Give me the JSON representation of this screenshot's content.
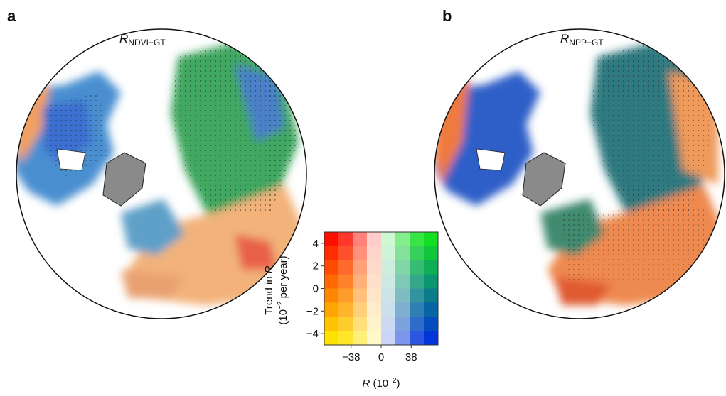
{
  "panels": [
    {
      "letter": "a",
      "title": "R",
      "subscript": "NDVI−GT"
    },
    {
      "letter": "b",
      "title": "R",
      "subscript": "NPP−GT"
    }
  ],
  "colorbar": {
    "ylabel": {
      "text": "Trend in ",
      "var": "R",
      "unit_base": "(10",
      "unit_exp": "−2",
      "unit_rest": " per year)"
    },
    "xlabel": {
      "var": "R",
      "unit_base": " (10",
      "unit_exp": "−2",
      "unit_end": ")"
    },
    "ylim": [
      -5,
      5
    ],
    "yticks": [
      {
        "value": 4,
        "label": "4"
      },
      {
        "value": 2,
        "label": "2"
      },
      {
        "value": 0,
        "label": "0"
      },
      {
        "value": -2,
        "label": "−2"
      },
      {
        "value": -4,
        "label": "−4"
      }
    ],
    "xlim": [
      -72,
      72
    ],
    "xticks": [
      {
        "value": -38,
        "label": "−38"
      },
      {
        "value": 0,
        "label": "0"
      },
      {
        "value": 38,
        "label": "38"
      }
    ]
  }
}
